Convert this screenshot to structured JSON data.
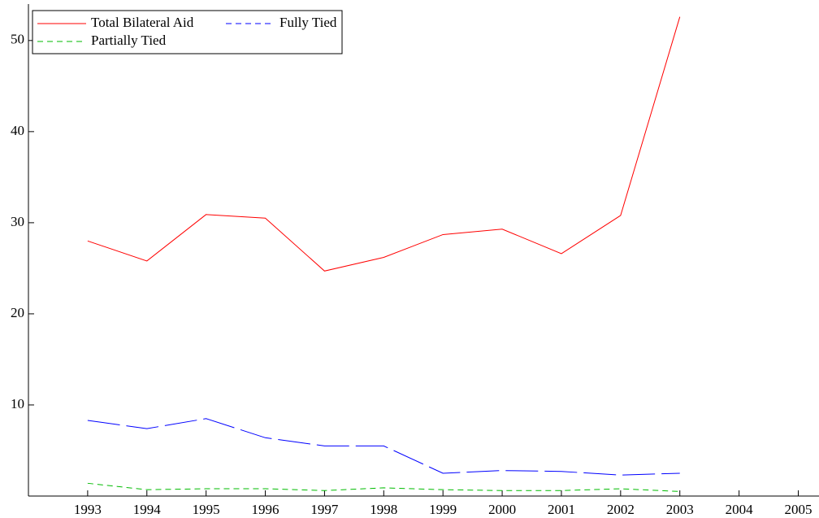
{
  "chart_data": {
    "type": "line",
    "x": [
      1993,
      1994,
      1995,
      1996,
      1997,
      1998,
      1999,
      2000,
      2001,
      2002,
      2003
    ],
    "series": [
      {
        "name": "Total Bilateral Aid",
        "color": "#ff0000",
        "line_style": "solid",
        "values": [
          28.0,
          25.8,
          30.9,
          30.5,
          24.7,
          26.2,
          28.7,
          29.3,
          26.6,
          30.8,
          52.6
        ]
      },
      {
        "name": "Fully Tied",
        "color": "#0000ff",
        "line_style": "long-dash",
        "values": [
          8.3,
          7.4,
          8.5,
          6.4,
          5.5,
          5.5,
          2.5,
          2.8,
          2.7,
          2.3,
          2.5
        ]
      },
      {
        "name": "Partially Tied",
        "color": "#00bb00",
        "line_style": "short-dash",
        "values": [
          1.4,
          0.7,
          0.8,
          0.8,
          0.6,
          0.9,
          0.7,
          0.6,
          0.6,
          0.8,
          0.5
        ]
      }
    ],
    "xlim": [
      1992,
      2005.35
    ],
    "xticks": [
      1993,
      1994,
      1995,
      1996,
      1997,
      1998,
      1999,
      2000,
      2001,
      2002,
      2003,
      2004,
      2005
    ],
    "ylim": [
      0,
      54
    ],
    "yticks": [
      10,
      20,
      30,
      40,
      50
    ],
    "legend": "upper-left"
  }
}
